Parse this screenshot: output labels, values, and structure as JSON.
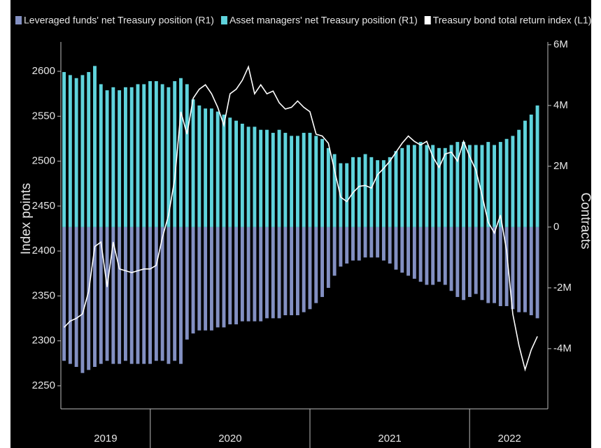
{
  "chart_data": {
    "type": "combo",
    "y_label": "Index points",
    "y2_label": "Contracts",
    "x": [
      2019.46,
      2019.4985,
      2019.537,
      2019.5755,
      2019.614,
      2019.6525,
      2019.691,
      2019.7295,
      2019.768,
      2019.8065,
      2019.845,
      2019.8835,
      2019.922,
      2019.9605,
      2019.999,
      2020.0375,
      2020.076,
      2020.1145,
      2020.153,
      2020.1915,
      2020.23,
      2020.2685,
      2020.307,
      2020.3455,
      2020.384,
      2020.4225,
      2020.461,
      2020.4995,
      2020.538,
      2020.5765,
      2020.615,
      2020.6535,
      2020.692,
      2020.7305,
      2020.769,
      2020.8075,
      2020.846,
      2020.8845,
      2020.923,
      2020.9615,
      2021.0,
      2021.0385,
      2021.077,
      2021.1155,
      2021.154,
      2021.1925,
      2021.231,
      2021.2695,
      2021.308,
      2021.3465,
      2021.385,
      2021.4235,
      2021.462,
      2021.5005,
      2021.539,
      2021.5775,
      2021.616,
      2021.6545,
      2021.693,
      2021.7315,
      2021.77,
      2021.8085,
      2021.847,
      2021.8855,
      2021.924,
      2021.9625,
      2022.001,
      2022.0395,
      2022.078,
      2022.1165,
      2022.155,
      2022.1935,
      2022.232,
      2022.2705,
      2022.309,
      2022.3475,
      2022.386,
      2022.4245
    ],
    "series": [
      {
        "name": "Leveraged funds' net Treasury position (R1)",
        "type": "bar",
        "axis": "y2",
        "color": "#8390c2",
        "values": [
          -4.4,
          -4.5,
          -4.6,
          -4.8,
          -4.7,
          -4.6,
          -4.5,
          -4.4,
          -4.5,
          -4.5,
          -4.4,
          -4.5,
          -4.5,
          -4.5,
          -4.5,
          -4.4,
          -4.4,
          -4.5,
          -4.4,
          -4.5,
          -3.7,
          -3.5,
          -3.4,
          -3.4,
          -3.4,
          -3.3,
          -3.3,
          -3.2,
          -3.2,
          -3.1,
          -3.1,
          -3.1,
          -3.1,
          -3.0,
          -3.0,
          -3.0,
          -2.9,
          -2.9,
          -2.9,
          -2.8,
          -2.7,
          -2.5,
          -2.3,
          -2.0,
          -1.6,
          -1.3,
          -1.2,
          -1.1,
          -1.1,
          -1.0,
          -1.0,
          -1.0,
          -1.1,
          -1.2,
          -1.4,
          -1.5,
          -1.6,
          -1.7,
          -1.8,
          -1.9,
          -1.9,
          -1.8,
          -1.9,
          -2.1,
          -2.3,
          -2.4,
          -2.3,
          -2.2,
          -2.4,
          -2.5,
          -2.5,
          -2.6,
          -2.6,
          -2.7,
          -2.8,
          -2.8,
          -2.9,
          -3.0
        ]
      },
      {
        "name": "Asset managers' net Treasury position (R1)",
        "type": "bar",
        "axis": "y2",
        "color": "#5fd3dc",
        "values": [
          5.1,
          5.0,
          4.9,
          5.0,
          5.1,
          5.3,
          4.7,
          4.5,
          4.6,
          4.5,
          4.6,
          4.6,
          4.7,
          4.7,
          4.8,
          4.8,
          4.7,
          4.6,
          4.8,
          4.9,
          4.7,
          4.2,
          4.0,
          3.9,
          3.9,
          3.8,
          3.7,
          3.6,
          3.5,
          3.4,
          3.3,
          3.3,
          3.2,
          3.2,
          3.1,
          3.2,
          3.1,
          3.0,
          3.0,
          3.1,
          3.1,
          3.0,
          2.9,
          2.6,
          2.4,
          2.1,
          2.1,
          2.3,
          2.3,
          2.4,
          2.3,
          2.2,
          2.2,
          2.3,
          2.5,
          2.6,
          2.7,
          2.7,
          2.8,
          2.7,
          2.7,
          2.6,
          2.6,
          2.7,
          2.8,
          2.8,
          2.7,
          2.7,
          2.7,
          2.8,
          2.7,
          2.8,
          2.9,
          3.0,
          3.2,
          3.5,
          3.7,
          4.0
        ]
      },
      {
        "name": "Treasury bond total return index (L1)",
        "type": "line",
        "axis": "y",
        "color": "#ffffff",
        "values": [
          2315,
          2322,
          2325,
          2330,
          2355,
          2405,
          2410,
          2360,
          2410,
          2380,
          2378,
          2376,
          2378,
          2380,
          2380,
          2384,
          2415,
          2440,
          2480,
          2555,
          2530,
          2570,
          2580,
          2585,
          2575,
          2560,
          2540,
          2575,
          2580,
          2590,
          2605,
          2575,
          2585,
          2575,
          2578,
          2565,
          2558,
          2560,
          2567,
          2560,
          2555,
          2530,
          2528,
          2520,
          2490,
          2460,
          2455,
          2465,
          2472,
          2473,
          2470,
          2485,
          2492,
          2500,
          2510,
          2520,
          2528,
          2522,
          2518,
          2522,
          2505,
          2493,
          2508,
          2510,
          2500,
          2522,
          2505,
          2490,
          2462,
          2432,
          2420,
          2440,
          2400,
          2330,
          2295,
          2268,
          2290,
          2305
        ]
      }
    ],
    "xlim": [
      2019.44,
      2022.49
    ],
    "xticks": [
      {
        "value": 2019.72,
        "label": "2019"
      },
      {
        "value": 2020.5,
        "label": "2020"
      },
      {
        "value": 2021.5,
        "label": "2021"
      },
      {
        "value": 2022.25,
        "label": "2022"
      }
    ],
    "x_separators": [
      2020,
      2021,
      2022
    ],
    "ylim": [
      2224.3,
      2632.7
    ],
    "yticks": [
      2250,
      2300,
      2350,
      2400,
      2450,
      2500,
      2550,
      2600
    ],
    "y2lim": [
      -5.98,
      6.09
    ],
    "y2ticks": [
      {
        "value": -4,
        "label": "-4M"
      },
      {
        "value": -2,
        "label": "-2M"
      },
      0,
      {
        "value": 2,
        "label": "2M"
      },
      {
        "value": 4,
        "label": "4M"
      },
      {
        "value": 6,
        "label": "6M"
      }
    ],
    "legend": "top"
  }
}
